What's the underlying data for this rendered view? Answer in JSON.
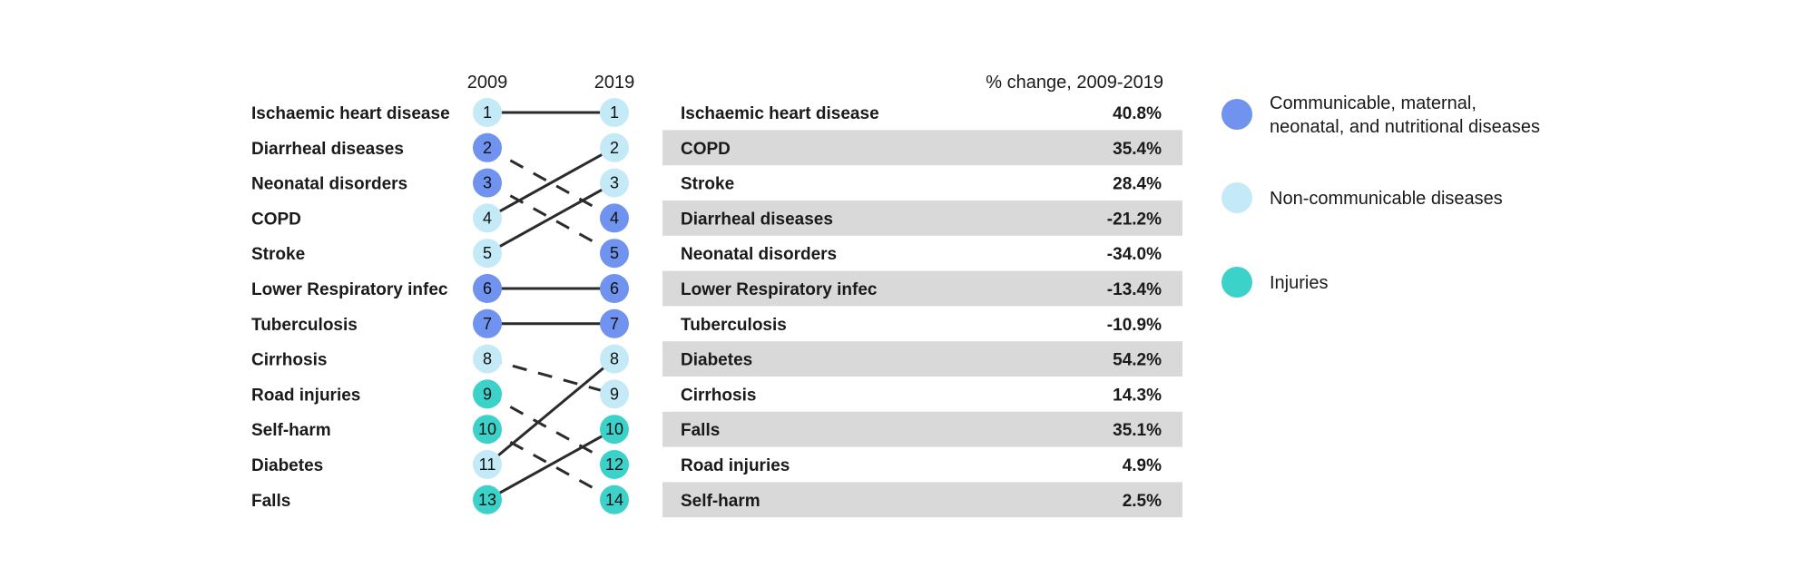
{
  "chart_data": {
    "type": "slope",
    "year_start": "2009",
    "year_end": "2019",
    "table_header": "% change, 2009-2019",
    "categories": {
      "communicable": {
        "label_lines": [
          "Communicable, maternal,",
          "neonatal, and nutritional diseases"
        ],
        "color": "#6f93ee"
      },
      "ncd": {
        "label_lines": [
          "Non-communicable diseases"
        ],
        "color": "#c4eaf7"
      },
      "injuries": {
        "label_lines": [
          "Injuries"
        ],
        "color": "#3cd2ca"
      }
    },
    "causes_2009": [
      {
        "name": "Ischaemic heart disease",
        "rank": "1",
        "category": "ncd"
      },
      {
        "name": "Diarrheal diseases",
        "rank": "2",
        "category": "communicable"
      },
      {
        "name": "Neonatal disorders",
        "rank": "3",
        "category": "communicable"
      },
      {
        "name": "COPD",
        "rank": "4",
        "category": "ncd"
      },
      {
        "name": "Stroke",
        "rank": "5",
        "category": "ncd"
      },
      {
        "name": "Lower Respiratory infec",
        "rank": "6",
        "category": "communicable"
      },
      {
        "name": "Tuberculosis",
        "rank": "7",
        "category": "communicable"
      },
      {
        "name": "Cirrhosis",
        "rank": "8",
        "category": "ncd"
      },
      {
        "name": "Road injuries",
        "rank": "9",
        "category": "injuries"
      },
      {
        "name": "Self-harm",
        "rank": "10",
        "category": "injuries"
      },
      {
        "name": "Diabetes",
        "rank": "11",
        "category": "ncd"
      },
      {
        "name": "Falls",
        "rank": "13",
        "category": "injuries"
      }
    ],
    "causes_2019": [
      {
        "name": "Ischaemic heart disease",
        "rank": "1",
        "category": "ncd",
        "pct_change": "40.8%"
      },
      {
        "name": "COPD",
        "rank": "2",
        "category": "ncd",
        "pct_change": "35.4%"
      },
      {
        "name": "Stroke",
        "rank": "3",
        "category": "ncd",
        "pct_change": "28.4%"
      },
      {
        "name": "Diarrheal diseases",
        "rank": "4",
        "category": "communicable",
        "pct_change": "-21.2%"
      },
      {
        "name": "Neonatal disorders",
        "rank": "5",
        "category": "communicable",
        "pct_change": "-34.0%"
      },
      {
        "name": "Lower Respiratory infec",
        "rank": "6",
        "category": "communicable",
        "pct_change": "-13.4%"
      },
      {
        "name": "Tuberculosis",
        "rank": "7",
        "category": "communicable",
        "pct_change": "-10.9%"
      },
      {
        "name": "Diabetes",
        "rank": "8",
        "category": "ncd",
        "pct_change": "54.2%"
      },
      {
        "name": "Cirrhosis",
        "rank": "9",
        "category": "ncd",
        "pct_change": "14.3%"
      },
      {
        "name": "Falls",
        "rank": "10",
        "category": "injuries",
        "pct_change": "35.1%"
      },
      {
        "name": "Road injuries",
        "rank": "12",
        "category": "injuries",
        "pct_change": "4.9%"
      },
      {
        "name": "Self-harm",
        "rank": "14",
        "category": "injuries",
        "pct_change": "2.5%"
      }
    ],
    "links": [
      {
        "from": 0,
        "to": 0,
        "style": "solid"
      },
      {
        "from": 1,
        "to": 3,
        "style": "dashed"
      },
      {
        "from": 2,
        "to": 4,
        "style": "dashed"
      },
      {
        "from": 3,
        "to": 1,
        "style": "solid"
      },
      {
        "from": 4,
        "to": 2,
        "style": "solid"
      },
      {
        "from": 5,
        "to": 5,
        "style": "solid"
      },
      {
        "from": 6,
        "to": 6,
        "style": "solid"
      },
      {
        "from": 7,
        "to": 8,
        "style": "dashed"
      },
      {
        "from": 8,
        "to": 10,
        "style": "dashed"
      },
      {
        "from": 9,
        "to": 11,
        "style": "dashed"
      },
      {
        "from": 10,
        "to": 7,
        "style": "solid"
      },
      {
        "from": 11,
        "to": 9,
        "style": "solid"
      }
    ],
    "row_shading_color": "#d9d9d9",
    "line_color": "#2b2b2b"
  }
}
